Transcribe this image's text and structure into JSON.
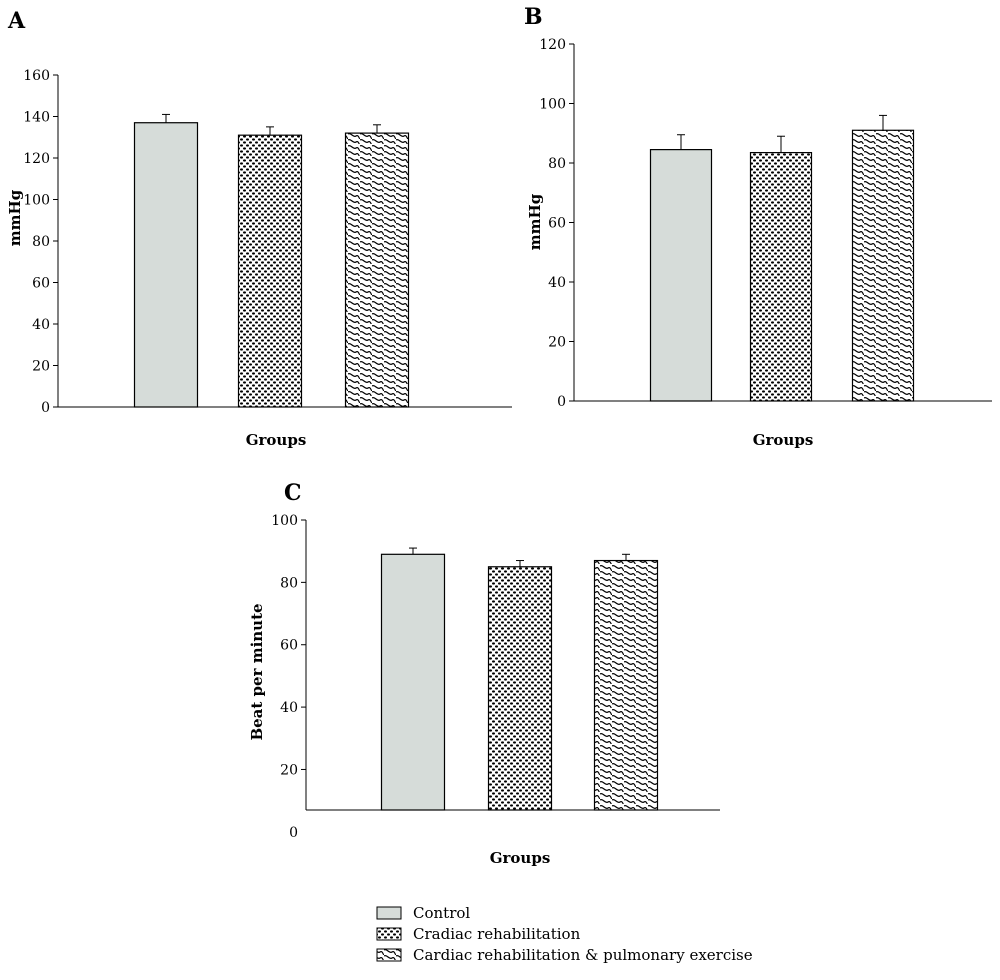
{
  "legend": {
    "items": [
      {
        "label": "Control",
        "pattern": "solid"
      },
      {
        "label": "Cradiac rehabilitation",
        "pattern": "dots"
      },
      {
        "label": "Cardiac rehabilitation & pulmonary exercise",
        "pattern": "waves"
      }
    ]
  },
  "colors": {
    "control_fill": "#d6dcd9",
    "outline": "#000000",
    "background": "#ffffff"
  },
  "chart_data": [
    {
      "type": "bar",
      "panel": "A",
      "categories": [
        "Control",
        "Cradiac rehabilitation",
        "Cardiac rehabilitation & pulmonary exercise"
      ],
      "values": [
        137,
        131,
        132
      ],
      "errors": [
        4,
        4,
        4
      ],
      "xlabel": "Groups",
      "ylabel": "mmHg",
      "ylim": [
        0,
        160
      ],
      "yticks": [
        0,
        20,
        40,
        60,
        80,
        100,
        120,
        140,
        160
      ],
      "grid": false
    },
    {
      "type": "bar",
      "panel": "B",
      "categories": [
        "Control",
        "Cradiac rehabilitation",
        "Cardiac rehabilitation & pulmonary exercise"
      ],
      "values": [
        84.5,
        83.5,
        91
      ],
      "errors": [
        5,
        5.5,
        5
      ],
      "xlabel": "Groups",
      "ylabel": "mmHg",
      "ylim": [
        0,
        120
      ],
      "yticks": [
        0,
        20,
        40,
        60,
        80,
        100,
        120
      ],
      "grid": false
    },
    {
      "type": "bar",
      "panel": "C",
      "categories": [
        "Control",
        "Cradiac rehabilitation",
        "Cardiac rehabilitation & pulmonary exercise"
      ],
      "values": [
        89,
        85,
        87
      ],
      "errors": [
        2,
        2,
        2
      ],
      "xlabel": "Groups",
      "ylabel": "Beat per minute",
      "ylim": [
        7,
        100
      ],
      "yticks": [
        20,
        40,
        60,
        80,
        100
      ],
      "extra_tick_label": "0",
      "grid": false
    }
  ]
}
